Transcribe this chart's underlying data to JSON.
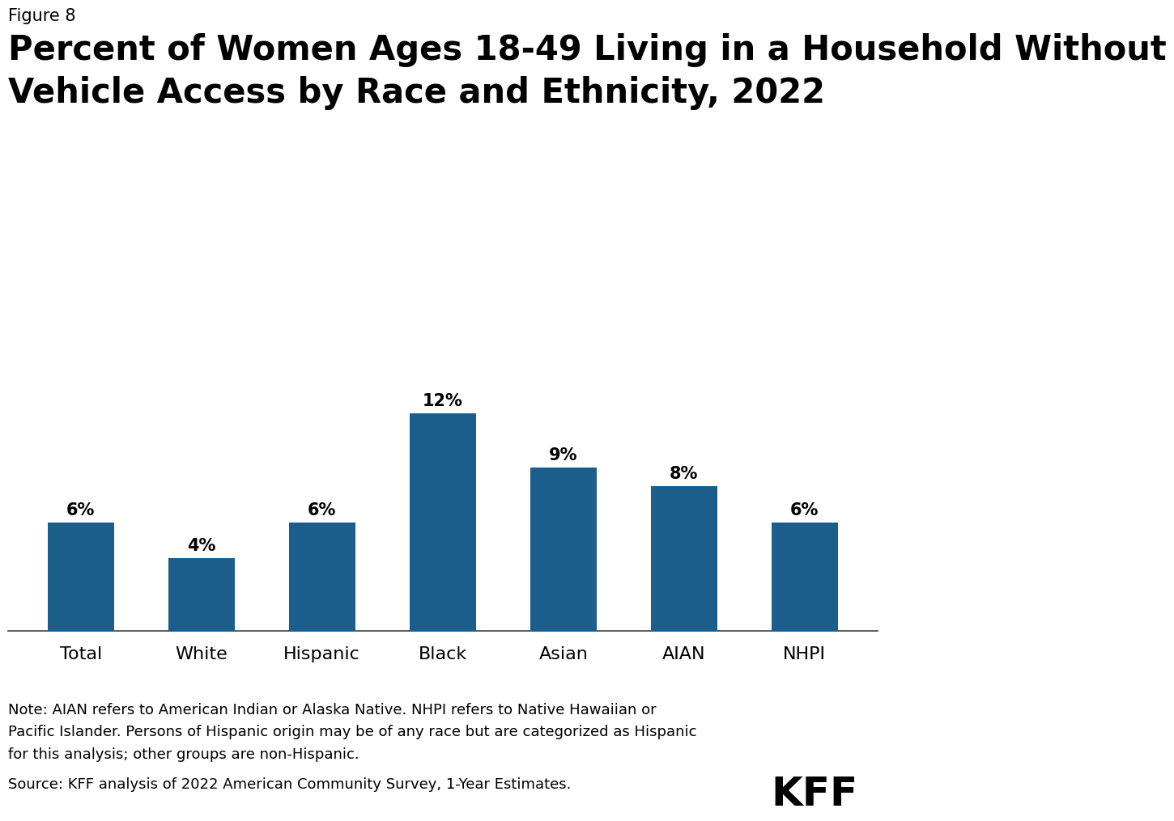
{
  "figure_label": "Figure 8",
  "title_line1": "Percent of Women Ages 18-49 Living in a Household Without",
  "title_line2": "Vehicle Access by Race and Ethnicity, 2022",
  "categories": [
    "Total",
    "White",
    "Hispanic",
    "Black",
    "Asian",
    "AIAN",
    "NHPI"
  ],
  "values": [
    6,
    4,
    6,
    12,
    9,
    8,
    6
  ],
  "bar_color": "#1b5e8c",
  "ylim": [
    0,
    15
  ],
  "label_fontsize": 15,
  "tick_fontsize": 16,
  "title_fontsize": 30,
  "figure_label_fontsize": 15,
  "note_text": "Note: AIAN refers to American Indian or Alaska Native. NHPI refers to Native Hawaiian or\nPacific Islander. Persons of Hispanic origin may be of any race but are categorized as Hispanic\nfor this analysis; other groups are non-Hispanic.",
  "source_text": "Source: KFF analysis of 2022 American Community Survey, 1-Year Estimates.",
  "kff_text": "KFF",
  "background_color": "#ffffff",
  "text_color": "#000000",
  "bar_width": 0.55,
  "note_fontsize": 13,
  "source_fontsize": 13,
  "kff_fontsize": 36
}
